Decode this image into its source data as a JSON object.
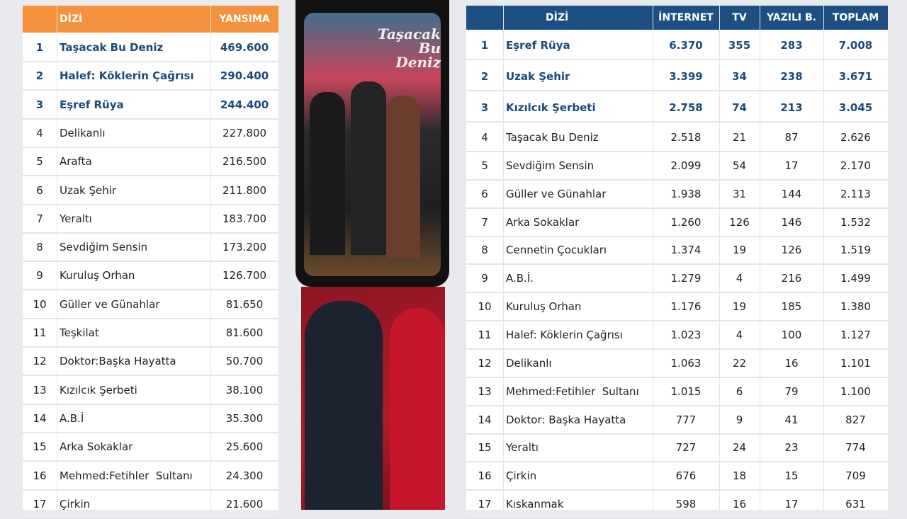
{
  "left_table": {
    "header": [
      "DİZİ",
      "YANSIMA"
    ],
    "rows": [
      [
        "1",
        "Taşacak Bu Deniz",
        "469.600"
      ],
      [
        "2",
        "Halef: Köklerin Çağrısı",
        "290.400"
      ],
      [
        "3",
        "Eşref Rüya",
        "244.400"
      ],
      [
        "4",
        "Delikanlı",
        "227.800"
      ],
      [
        "5",
        "Arafta",
        "216.500"
      ],
      [
        "6",
        "Uzak Şehir",
        "211.800"
      ],
      [
        "7",
        "Yeraltı",
        "183.700"
      ],
      [
        "8",
        "Sevdiğim Sensin",
        "173.200"
      ],
      [
        "9",
        "Kuruluş Orhan",
        "126.700"
      ],
      [
        "10",
        "Güller ve Günahlar",
        "81.650"
      ],
      [
        "11",
        "Teşkilat",
        "81.600"
      ],
      [
        "12",
        "Doktor:Başka Hayatta",
        "50.700"
      ],
      [
        "13",
        "Kızılcık Şerbeti",
        "38.100"
      ],
      [
        "14",
        "A.B.İ",
        "35.300"
      ],
      [
        "15",
        "Arka Sokaklar",
        "25.600"
      ],
      [
        "16",
        "Mehmed:Fetihler  Sultanı",
        "24.300"
      ],
      [
        "17",
        "Çirkin",
        "21.600"
      ]
    ]
  },
  "right_table": {
    "header": [
      "DİZİ",
      "İNTERNET",
      "TV",
      "YAZILI B.",
      "TOPLAM"
    ],
    "rows": [
      [
        "1",
        "Eşref Rüya",
        "6.370",
        "355",
        "283",
        "7.008"
      ],
      [
        "2",
        "Uzak Şehir",
        "3.399",
        "34",
        "238",
        "3.671"
      ],
      [
        "3",
        "Kızılcık Şerbeti",
        "2.758",
        "74",
        "213",
        "3.045"
      ],
      [
        "4",
        "Taşacak Bu Deniz",
        "2.518",
        "21",
        "87",
        "2.626"
      ],
      [
        "5",
        "Sevdiğim Sensin",
        "2.099",
        "54",
        "17",
        "2.170"
      ],
      [
        "6",
        "Güller ve Günahlar",
        "1.938",
        "31",
        "144",
        "2.113"
      ],
      [
        "7",
        "Arka Sokaklar",
        "1.260",
        "126",
        "146",
        "1.532"
      ],
      [
        "8",
        "Cennetin Çocukları",
        "1.374",
        "19",
        "126",
        "1.519"
      ],
      [
        "9",
        "A.B.İ.",
        "1.279",
        "4",
        "216",
        "1.499"
      ],
      [
        "10",
        "Kuruluş Orhan",
        "1.176",
        "19",
        "185",
        "1.380"
      ],
      [
        "11",
        "Halef: Köklerin Çağrısı",
        "1.023",
        "4",
        "100",
        "1.127"
      ],
      [
        "12",
        "Delikanlı",
        "1.063",
        "22",
        "16",
        "1.101"
      ],
      [
        "13",
        "Mehmed:Fetihler  Sultanı",
        "1.015",
        "6",
        "79",
        "1.100"
      ],
      [
        "14",
        "Doktor: Başka Hayatta",
        "777",
        "9",
        "41",
        "827"
      ],
      [
        "15",
        "Yeraltı",
        "727",
        "24",
        "23",
        "774"
      ],
      [
        "16",
        "Çirkin",
        "676",
        "18",
        "15",
        "709"
      ],
      [
        "17",
        "Kıskanmak",
        "598",
        "16",
        "17",
        "631"
      ]
    ]
  },
  "poster": {
    "title": "Taşacak Bu Deniz"
  }
}
